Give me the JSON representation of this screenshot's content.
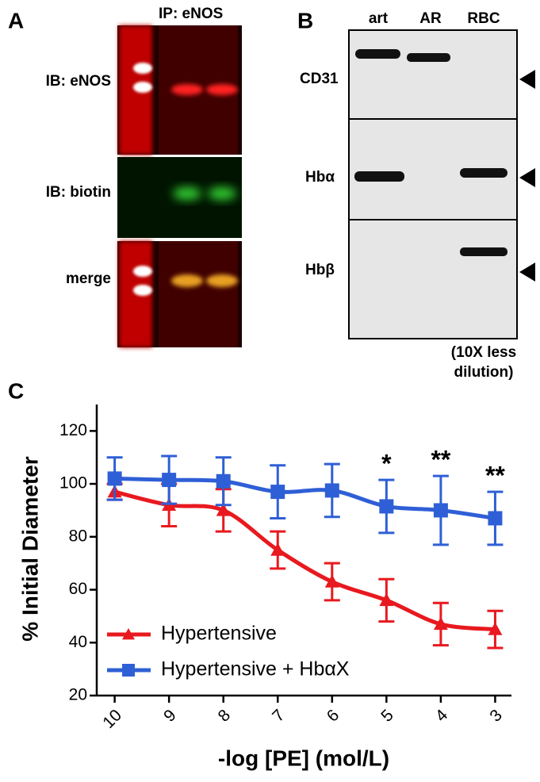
{
  "panel_a": {
    "letter": "A",
    "header": "IP:  eNOS",
    "rows": [
      "IB: eNOS",
      "IB: biotin",
      "merge"
    ]
  },
  "panel_b": {
    "letter": "B",
    "lanes": [
      "art",
      "AR",
      "RBC"
    ],
    "rows": [
      "CD31",
      "Hbα",
      "Hbβ"
    ],
    "note_lines": [
      "(10X less",
      "dilution)"
    ]
  },
  "chart_data": {
    "type": "line",
    "letter": "C",
    "x_label": "-log [PE] (mol/L)",
    "y_label": "% Initial Diameter",
    "x": [
      10,
      9,
      8,
      7,
      6,
      5,
      4,
      3
    ],
    "xlim": [
      10.33,
      2.7
    ],
    "xticks": [
      10,
      9,
      8,
      7,
      6,
      5,
      4,
      3
    ],
    "ylim": [
      20,
      130
    ],
    "yticks": [
      20,
      40,
      60,
      80,
      100,
      120
    ],
    "legend": "lower left",
    "series": [
      {
        "name": "Hypertensive",
        "color": "#e8191f",
        "marker": "triangle",
        "values": [
          97,
          92,
          90,
          75,
          63,
          56,
          47,
          45
        ],
        "errors": [
          3,
          8,
          8,
          7,
          7,
          8,
          8,
          7
        ]
      },
      {
        "name": "Hypertensive + HbαX",
        "color": "#2f5fd6",
        "marker": "square",
        "values": [
          102,
          101.5,
          101,
          97,
          97.5,
          91.5,
          90,
          87
        ],
        "errors": [
          8,
          9,
          9,
          10,
          10,
          10,
          13,
          10
        ]
      }
    ],
    "annotations": [
      {
        "x": 5,
        "text": "*"
      },
      {
        "x": 4,
        "text": "**"
      },
      {
        "x": 3,
        "text": "**"
      }
    ]
  }
}
